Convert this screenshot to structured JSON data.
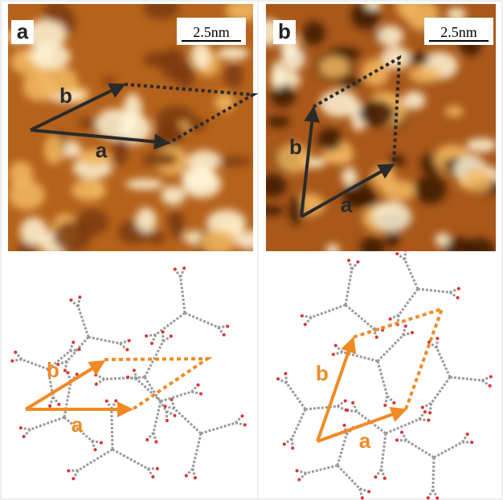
{
  "panels": [
    {
      "label": "a",
      "scale_bar": "2.5nm",
      "stm_labels": [
        "b",
        "a"
      ],
      "model_labels": [
        "b",
        "a"
      ]
    },
    {
      "label": "b",
      "scale_bar": "2.5nm",
      "stm_labels": [
        "b",
        "a"
      ],
      "model_labels": [
        "b",
        "a"
      ]
    }
  ]
}
